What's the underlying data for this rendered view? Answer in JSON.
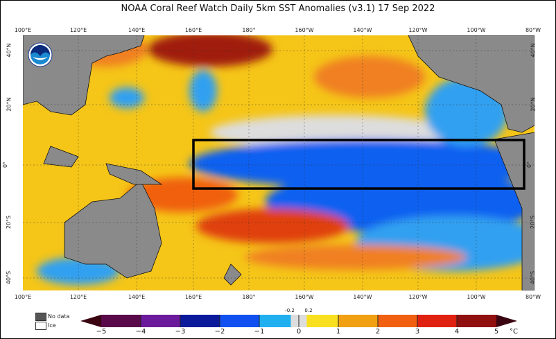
{
  "title": "NOAA Coral Reef Watch Daily 5km SST Anomalies  (v3.1)   17 Sep 2022",
  "logo_text": "NOAA",
  "lon_labels": [
    "100°E",
    "120°E",
    "140°E",
    "160°E",
    "180°",
    "160°W",
    "140°W",
    "120°W",
    "100°W",
    "80°W"
  ],
  "lat_labels": [
    "40°N",
    "20°N",
    "0°",
    "20°S",
    "40°S"
  ],
  "legend": {
    "no_data": "No data",
    "ice": "Ice",
    "no_data_color": "#555555",
    "ice_color": "#ffffff"
  },
  "colorbar": {
    "ticks": [
      "−5",
      "−4",
      "−3",
      "−2",
      "−1",
      "0",
      "1",
      "2",
      "3",
      "4",
      "5"
    ],
    "small_ticks": [
      "-0.2",
      "0.2"
    ],
    "unit": "°C",
    "colors": [
      "#5a0a4a",
      "#6a1a9a",
      "#0a1a9a",
      "#1050f0",
      "#20b0f0",
      "#dddddd",
      "#f8e020",
      "#f0a010",
      "#f06010",
      "#e02010",
      "#901010"
    ]
  },
  "region_box": {
    "lon": [
      "160°E",
      "85°W"
    ],
    "lat": [
      "10°N",
      "10°S"
    ]
  }
}
